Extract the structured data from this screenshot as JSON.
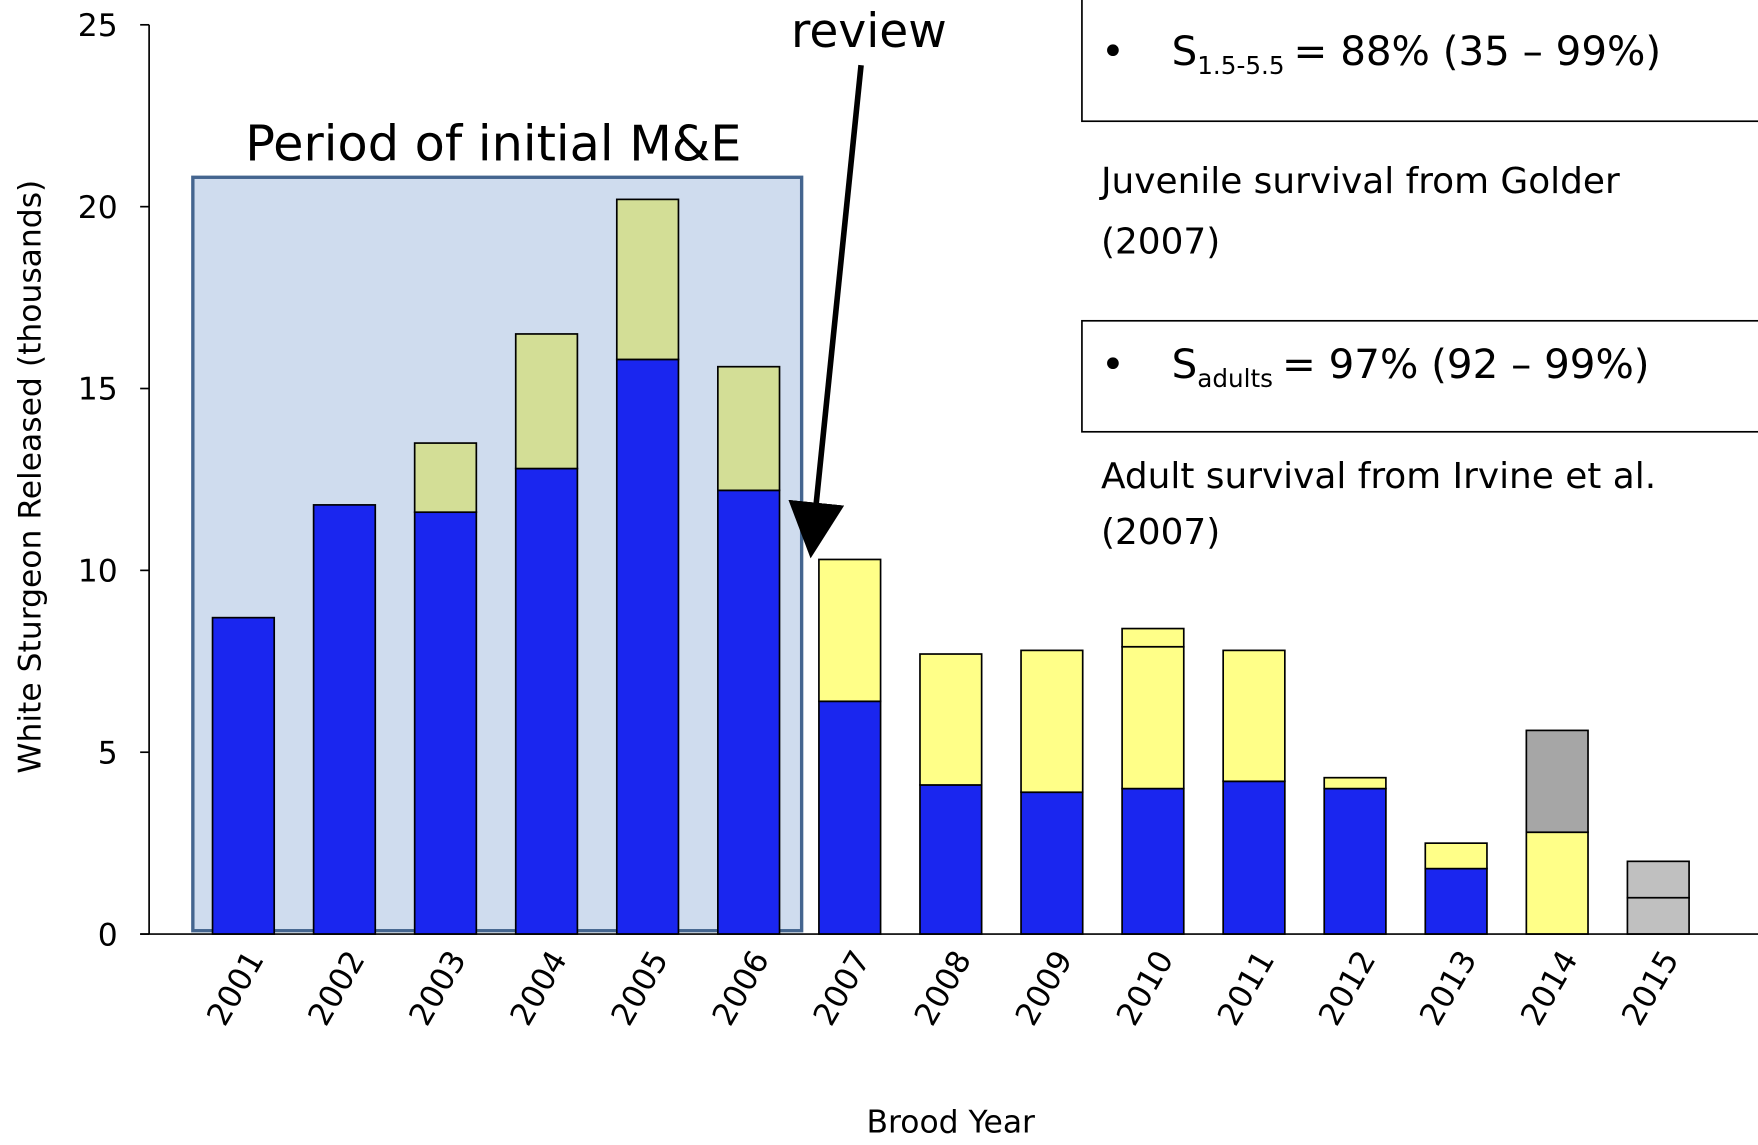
{
  "chart_data": {
    "type": "bar",
    "stacked": true,
    "y_label": "White Sturgeon Released (thousands)",
    "x_label": "Brood Year",
    "categories": [
      "2001",
      "2002",
      "2003",
      "2004",
      "2005",
      "2006",
      "2007",
      "2008",
      "2009",
      "2010",
      "2011",
      "2012",
      "2013",
      "2014",
      "2015"
    ],
    "series": [
      {
        "color": "#1a26ef",
        "values": [
          8.7,
          11.8,
          11.6,
          12.8,
          15.8,
          12.2,
          6.4,
          4.1,
          3.9,
          4.0,
          4.2,
          4.0,
          1.8,
          null,
          null
        ]
      },
      {
        "color": "#d3de96",
        "values": [
          null,
          null,
          1.9,
          3.7,
          4.4,
          3.4,
          null,
          null,
          null,
          null,
          null,
          null,
          null,
          null,
          null
        ]
      },
      {
        "color": "#ffff88",
        "values": [
          null,
          null,
          null,
          null,
          null,
          null,
          3.9,
          3.6,
          3.9,
          3.9,
          3.6,
          0.3,
          0.7,
          2.8,
          null
        ]
      },
      {
        "color": "#ffff88",
        "values": [
          null,
          null,
          null,
          null,
          null,
          null,
          null,
          null,
          null,
          0.5,
          null,
          null,
          null,
          null,
          null
        ]
      },
      {
        "color": "#a6a6a6",
        "values": [
          null,
          null,
          null,
          null,
          null,
          null,
          null,
          null,
          null,
          null,
          null,
          null,
          null,
          2.8,
          null
        ]
      },
      {
        "color": "#c0c0c0",
        "values": [
          null,
          null,
          null,
          null,
          null,
          null,
          null,
          null,
          null,
          null,
          null,
          null,
          null,
          null,
          1.0
        ]
      },
      {
        "color": "#c0c0c0",
        "values": [
          null,
          null,
          null,
          null,
          null,
          null,
          null,
          null,
          null,
          null,
          null,
          null,
          null,
          null,
          1.0
        ]
      }
    ],
    "ylim": [
      0,
      25
    ],
    "yticks": [
      0,
      5,
      10,
      15,
      20,
      25
    ],
    "annotations": {
      "review": "review",
      "period": "Period of initial M&E",
      "juvenile_box": {
        "bullet": "•",
        "symbol": "S",
        "subscript": "1.5-5.5",
        "text": "= 88% (35 – 99%)"
      },
      "juvenile_note": [
        "Juvenile survival from Golder",
        "(2007)"
      ],
      "adult_box": {
        "bullet": "•",
        "symbol": "S",
        "subscript": "adults",
        "text": "= 97% (92 – 99%)"
      },
      "adult_note": [
        "Adult survival from Irvine et al.",
        "(2007)"
      ]
    }
  }
}
